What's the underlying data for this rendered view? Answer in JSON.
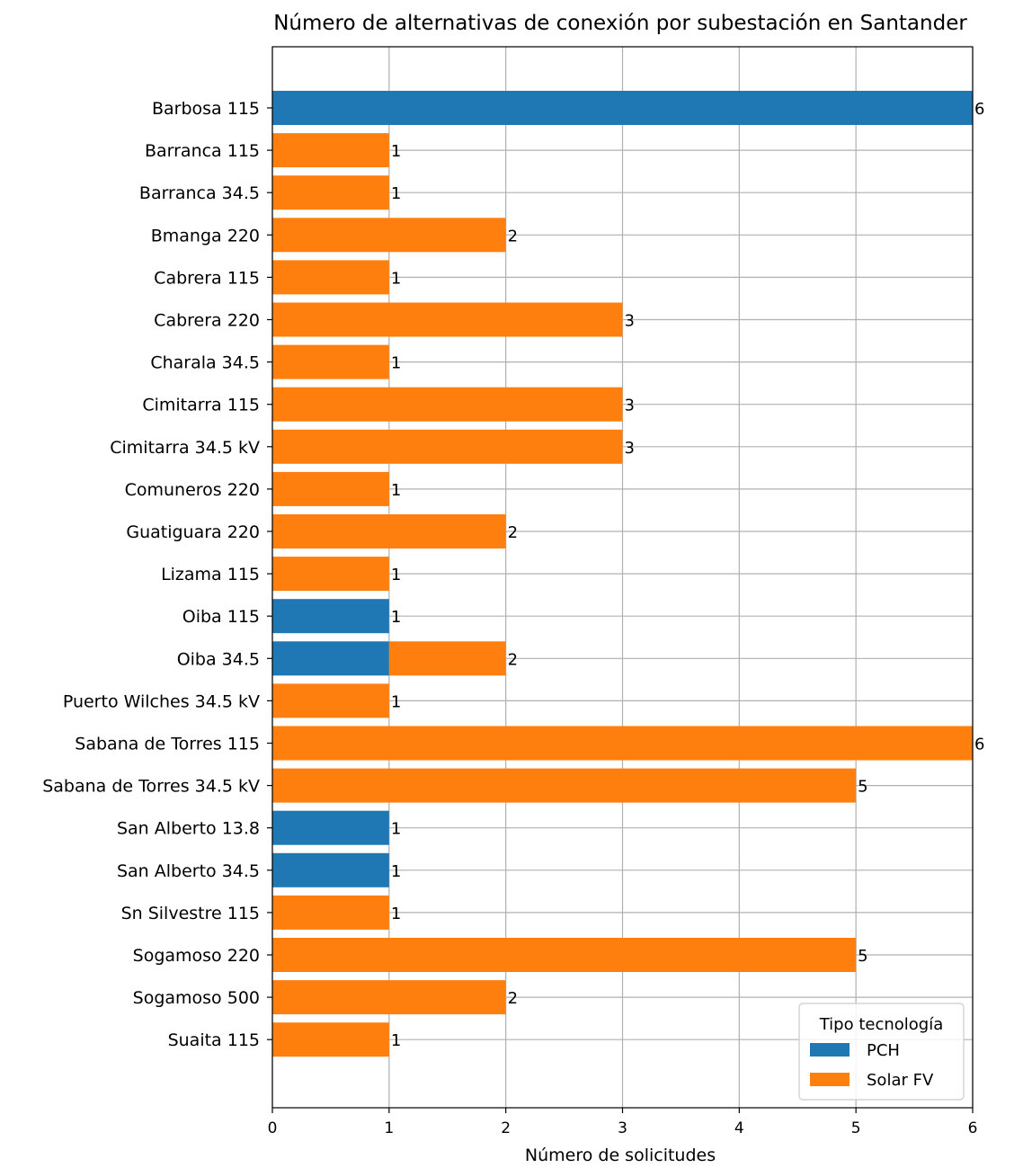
{
  "chart_data": {
    "type": "bar",
    "orientation": "horizontal",
    "stacked": true,
    "title": "Número de alternativas de conexión por subestación en Santander",
    "xlabel": "Número de solicitudes",
    "ylabel": "",
    "xlim": [
      0,
      6
    ],
    "xticks": [
      0,
      1,
      2,
      3,
      4,
      5,
      6
    ],
    "grid": true,
    "legend_position": "lower-right",
    "legend_title": "Tipo tecnología",
    "categories": [
      "Barbosa 115",
      "Barranca 115",
      "Barranca 34.5",
      "Bmanga 220",
      "Cabrera 115",
      "Cabrera 220",
      "Charala 34.5",
      "Cimitarra 115",
      "Cimitarra 34.5 kV",
      "Comuneros 220",
      "Guatiguara 220",
      "Lizama 115",
      "Oiba 115",
      "Oiba 34.5",
      "Puerto Wilches 34.5 kV",
      "Sabana de Torres 115",
      "Sabana de Torres 34.5 kV",
      "San Alberto 13.8",
      "San Alberto 34.5",
      "Sn Silvestre 115",
      "Sogamoso 220",
      "Sogamoso 500",
      "Suaita 115"
    ],
    "series": [
      {
        "name": "PCH",
        "color": "#1f77b4",
        "values": [
          6,
          0,
          0,
          0,
          0,
          0,
          0,
          0,
          0,
          0,
          0,
          0,
          1,
          1,
          0,
          0,
          0,
          1,
          1,
          0,
          0,
          0,
          0
        ]
      },
      {
        "name": "Solar FV",
        "color": "#ff7f0e",
        "values": [
          0,
          1,
          1,
          2,
          1,
          3,
          1,
          3,
          3,
          1,
          2,
          1,
          0,
          1,
          1,
          6,
          5,
          0,
          0,
          1,
          5,
          2,
          1
        ]
      }
    ],
    "totals": [
      6,
      1,
      1,
      2,
      1,
      3,
      1,
      3,
      3,
      1,
      2,
      1,
      1,
      2,
      1,
      6,
      5,
      1,
      1,
      1,
      5,
      2,
      1
    ]
  }
}
